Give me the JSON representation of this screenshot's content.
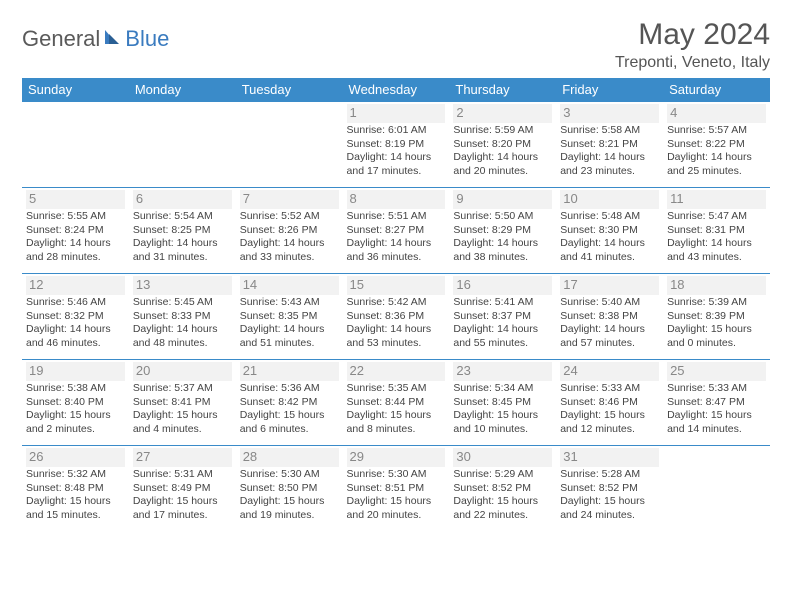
{
  "brand": {
    "part1": "General",
    "part2": "Blue"
  },
  "title": "May 2024",
  "location": "Treponti, Veneto, Italy",
  "colors": {
    "header_bg": "#3a8bc9",
    "header_text": "#ffffff",
    "brand_gray": "#5a5a5a",
    "brand_blue": "#3a7bbf",
    "daynum_bg": "#f2f2f2",
    "daynum_text": "#888888",
    "body_text": "#444444",
    "rule": "#3a8bc9"
  },
  "day_headers": [
    "Sunday",
    "Monday",
    "Tuesday",
    "Wednesday",
    "Thursday",
    "Friday",
    "Saturday"
  ],
  "weeks": [
    [
      null,
      null,
      null,
      {
        "n": "1",
        "sr": "Sunrise: 6:01 AM",
        "ss": "Sunset: 8:19 PM",
        "d1": "Daylight: 14 hours",
        "d2": "and 17 minutes."
      },
      {
        "n": "2",
        "sr": "Sunrise: 5:59 AM",
        "ss": "Sunset: 8:20 PM",
        "d1": "Daylight: 14 hours",
        "d2": "and 20 minutes."
      },
      {
        "n": "3",
        "sr": "Sunrise: 5:58 AM",
        "ss": "Sunset: 8:21 PM",
        "d1": "Daylight: 14 hours",
        "d2": "and 23 minutes."
      },
      {
        "n": "4",
        "sr": "Sunrise: 5:57 AM",
        "ss": "Sunset: 8:22 PM",
        "d1": "Daylight: 14 hours",
        "d2": "and 25 minutes."
      }
    ],
    [
      {
        "n": "5",
        "sr": "Sunrise: 5:55 AM",
        "ss": "Sunset: 8:24 PM",
        "d1": "Daylight: 14 hours",
        "d2": "and 28 minutes."
      },
      {
        "n": "6",
        "sr": "Sunrise: 5:54 AM",
        "ss": "Sunset: 8:25 PM",
        "d1": "Daylight: 14 hours",
        "d2": "and 31 minutes."
      },
      {
        "n": "7",
        "sr": "Sunrise: 5:52 AM",
        "ss": "Sunset: 8:26 PM",
        "d1": "Daylight: 14 hours",
        "d2": "and 33 minutes."
      },
      {
        "n": "8",
        "sr": "Sunrise: 5:51 AM",
        "ss": "Sunset: 8:27 PM",
        "d1": "Daylight: 14 hours",
        "d2": "and 36 minutes."
      },
      {
        "n": "9",
        "sr": "Sunrise: 5:50 AM",
        "ss": "Sunset: 8:29 PM",
        "d1": "Daylight: 14 hours",
        "d2": "and 38 minutes."
      },
      {
        "n": "10",
        "sr": "Sunrise: 5:48 AM",
        "ss": "Sunset: 8:30 PM",
        "d1": "Daylight: 14 hours",
        "d2": "and 41 minutes."
      },
      {
        "n": "11",
        "sr": "Sunrise: 5:47 AM",
        "ss": "Sunset: 8:31 PM",
        "d1": "Daylight: 14 hours",
        "d2": "and 43 minutes."
      }
    ],
    [
      {
        "n": "12",
        "sr": "Sunrise: 5:46 AM",
        "ss": "Sunset: 8:32 PM",
        "d1": "Daylight: 14 hours",
        "d2": "and 46 minutes."
      },
      {
        "n": "13",
        "sr": "Sunrise: 5:45 AM",
        "ss": "Sunset: 8:33 PM",
        "d1": "Daylight: 14 hours",
        "d2": "and 48 minutes."
      },
      {
        "n": "14",
        "sr": "Sunrise: 5:43 AM",
        "ss": "Sunset: 8:35 PM",
        "d1": "Daylight: 14 hours",
        "d2": "and 51 minutes."
      },
      {
        "n": "15",
        "sr": "Sunrise: 5:42 AM",
        "ss": "Sunset: 8:36 PM",
        "d1": "Daylight: 14 hours",
        "d2": "and 53 minutes."
      },
      {
        "n": "16",
        "sr": "Sunrise: 5:41 AM",
        "ss": "Sunset: 8:37 PM",
        "d1": "Daylight: 14 hours",
        "d2": "and 55 minutes."
      },
      {
        "n": "17",
        "sr": "Sunrise: 5:40 AM",
        "ss": "Sunset: 8:38 PM",
        "d1": "Daylight: 14 hours",
        "d2": "and 57 minutes."
      },
      {
        "n": "18",
        "sr": "Sunrise: 5:39 AM",
        "ss": "Sunset: 8:39 PM",
        "d1": "Daylight: 15 hours",
        "d2": "and 0 minutes."
      }
    ],
    [
      {
        "n": "19",
        "sr": "Sunrise: 5:38 AM",
        "ss": "Sunset: 8:40 PM",
        "d1": "Daylight: 15 hours",
        "d2": "and 2 minutes."
      },
      {
        "n": "20",
        "sr": "Sunrise: 5:37 AM",
        "ss": "Sunset: 8:41 PM",
        "d1": "Daylight: 15 hours",
        "d2": "and 4 minutes."
      },
      {
        "n": "21",
        "sr": "Sunrise: 5:36 AM",
        "ss": "Sunset: 8:42 PM",
        "d1": "Daylight: 15 hours",
        "d2": "and 6 minutes."
      },
      {
        "n": "22",
        "sr": "Sunrise: 5:35 AM",
        "ss": "Sunset: 8:44 PM",
        "d1": "Daylight: 15 hours",
        "d2": "and 8 minutes."
      },
      {
        "n": "23",
        "sr": "Sunrise: 5:34 AM",
        "ss": "Sunset: 8:45 PM",
        "d1": "Daylight: 15 hours",
        "d2": "and 10 minutes."
      },
      {
        "n": "24",
        "sr": "Sunrise: 5:33 AM",
        "ss": "Sunset: 8:46 PM",
        "d1": "Daylight: 15 hours",
        "d2": "and 12 minutes."
      },
      {
        "n": "25",
        "sr": "Sunrise: 5:33 AM",
        "ss": "Sunset: 8:47 PM",
        "d1": "Daylight: 15 hours",
        "d2": "and 14 minutes."
      }
    ],
    [
      {
        "n": "26",
        "sr": "Sunrise: 5:32 AM",
        "ss": "Sunset: 8:48 PM",
        "d1": "Daylight: 15 hours",
        "d2": "and 15 minutes."
      },
      {
        "n": "27",
        "sr": "Sunrise: 5:31 AM",
        "ss": "Sunset: 8:49 PM",
        "d1": "Daylight: 15 hours",
        "d2": "and 17 minutes."
      },
      {
        "n": "28",
        "sr": "Sunrise: 5:30 AM",
        "ss": "Sunset: 8:50 PM",
        "d1": "Daylight: 15 hours",
        "d2": "and 19 minutes."
      },
      {
        "n": "29",
        "sr": "Sunrise: 5:30 AM",
        "ss": "Sunset: 8:51 PM",
        "d1": "Daylight: 15 hours",
        "d2": "and 20 minutes."
      },
      {
        "n": "30",
        "sr": "Sunrise: 5:29 AM",
        "ss": "Sunset: 8:52 PM",
        "d1": "Daylight: 15 hours",
        "d2": "and 22 minutes."
      },
      {
        "n": "31",
        "sr": "Sunrise: 5:28 AM",
        "ss": "Sunset: 8:52 PM",
        "d1": "Daylight: 15 hours",
        "d2": "and 24 minutes."
      },
      null
    ]
  ]
}
